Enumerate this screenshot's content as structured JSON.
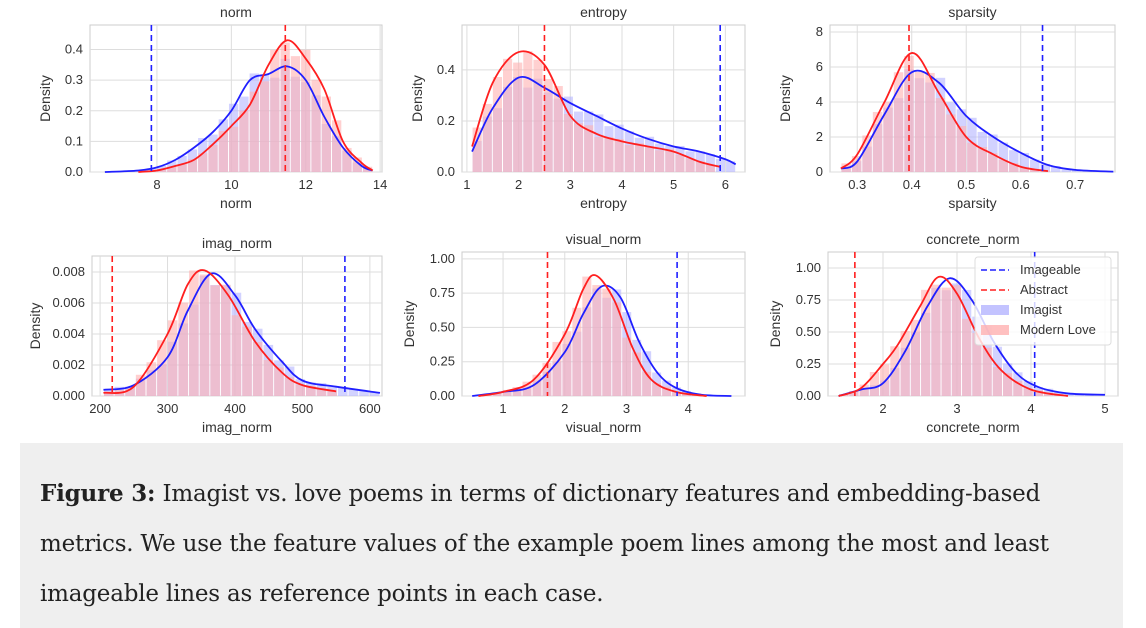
{
  "caption": {
    "label": "Figure 3:",
    "text": "Imagist vs. love poems in terms of dictionary features and embedding-based metrics. We use the feature values of the example poem lines among the most and least imageable lines as reference points in each case."
  },
  "colors": {
    "imagist": "#1f1fff",
    "love": "#ff1f1f",
    "imagist_fill": "#b4b4ff",
    "love_fill": "#ffb0b0",
    "grid": "#dddddd"
  },
  "chart_data": [
    {
      "type": "area",
      "title": "norm",
      "xlabel": "norm",
      "ylabel": "Density",
      "xlim": [
        6.2,
        14.05
      ],
      "ylim": [
        0,
        0.48
      ],
      "xticks": [
        8,
        10,
        12,
        14
      ],
      "xtick_labels": [
        "8",
        "10",
        "12",
        "14"
      ],
      "yticks": [
        0,
        0.1,
        0.2,
        0.3,
        0.4
      ],
      "ytick_labels": [
        "0.0",
        "0.1",
        "0.2",
        "0.3",
        "0.4"
      ],
      "vlines": {
        "imageable": 7.85,
        "abstract": 11.45
      },
      "series": [
        {
          "name": "Imagist",
          "kde": [
            [
              6.6,
              0
            ],
            [
              7.5,
              0.005
            ],
            [
              8,
              0.015
            ],
            [
              8.5,
              0.04
            ],
            [
              9,
              0.08
            ],
            [
              9.5,
              0.13
            ],
            [
              10,
              0.2
            ],
            [
              10.5,
              0.3
            ],
            [
              11,
              0.32
            ],
            [
              11.5,
              0.345
            ],
            [
              12,
              0.3
            ],
            [
              12.5,
              0.18
            ],
            [
              13,
              0.08
            ],
            [
              13.5,
              0.02
            ],
            [
              13.8,
              0.005
            ]
          ]
        },
        {
          "name": "Modern Love",
          "kde": [
            [
              7.5,
              0
            ],
            [
              8,
              0.005
            ],
            [
              8.5,
              0.02
            ],
            [
              9,
              0.04
            ],
            [
              9.5,
              0.09
            ],
            [
              10,
              0.15
            ],
            [
              10.5,
              0.22
            ],
            [
              11,
              0.35
            ],
            [
              11.5,
              0.43
            ],
            [
              12,
              0.37
            ],
            [
              12.5,
              0.27
            ],
            [
              13,
              0.1
            ],
            [
              13.5,
              0.03
            ],
            [
              13.8,
              0.005
            ]
          ]
        }
      ]
    },
    {
      "type": "area",
      "title": "entropy",
      "xlabel": "entropy",
      "ylabel": "Density",
      "xlim": [
        0.905,
        6.38
      ],
      "ylim": [
        0,
        0.576
      ],
      "xticks": [
        1,
        2,
        3,
        4,
        5,
        6
      ],
      "xtick_labels": [
        "1",
        "2",
        "3",
        "4",
        "5",
        "6"
      ],
      "yticks": [
        0,
        0.2,
        0.4
      ],
      "ytick_labels": [
        "0.0",
        "0.2",
        "0.4"
      ],
      "vlines": {
        "imageable": 5.9,
        "abstract": 2.5
      },
      "series": [
        {
          "name": "Imagist",
          "kde": [
            [
              1.1,
              0.08
            ],
            [
              1.5,
              0.25
            ],
            [
              2,
              0.37
            ],
            [
              2.5,
              0.33
            ],
            [
              3,
              0.27
            ],
            [
              3.5,
              0.22
            ],
            [
              4,
              0.17
            ],
            [
              4.5,
              0.13
            ],
            [
              5,
              0.1
            ],
            [
              5.5,
              0.08
            ],
            [
              6,
              0.05
            ],
            [
              6.2,
              0.03
            ]
          ]
        },
        {
          "name": "Modern Love",
          "kde": [
            [
              1.1,
              0.1
            ],
            [
              1.5,
              0.35
            ],
            [
              2,
              0.47
            ],
            [
              2.5,
              0.42
            ],
            [
              3,
              0.22
            ],
            [
              3.5,
              0.15
            ],
            [
              4,
              0.12
            ],
            [
              4.5,
              0.1
            ],
            [
              5,
              0.08
            ],
            [
              5.5,
              0.04
            ],
            [
              5.9,
              0.02
            ]
          ]
        }
      ]
    },
    {
      "type": "area",
      "title": "sparsity",
      "xlabel": "sparsity",
      "ylabel": "Density",
      "xlim": [
        0.25,
        0.773
      ],
      "ylim": [
        0,
        8.4
      ],
      "xticks": [
        0.3,
        0.4,
        0.5,
        0.6,
        0.7
      ],
      "xtick_labels": [
        "0.3",
        "0.4",
        "0.5",
        "0.6",
        "0.7"
      ],
      "yticks": [
        0,
        2,
        4,
        6,
        8
      ],
      "ytick_labels": [
        "0",
        "2",
        "4",
        "6",
        "8"
      ],
      "vlines": {
        "imageable": 0.64,
        "abstract": 0.395
      },
      "series": [
        {
          "name": "Imagist",
          "kde": [
            [
              0.27,
              0.2
            ],
            [
              0.3,
              0.6
            ],
            [
              0.35,
              3.3
            ],
            [
              0.4,
              5.7
            ],
            [
              0.45,
              5.1
            ],
            [
              0.5,
              3.2
            ],
            [
              0.55,
              2.0
            ],
            [
              0.6,
              1.1
            ],
            [
              0.65,
              0.4
            ],
            [
              0.7,
              0.12
            ],
            [
              0.77,
              0.02
            ]
          ]
        },
        {
          "name": "Modern Love",
          "kde": [
            [
              0.27,
              0.2
            ],
            [
              0.3,
              1.0
            ],
            [
              0.35,
              4.0
            ],
            [
              0.4,
              6.8
            ],
            [
              0.45,
              4.5
            ],
            [
              0.5,
              2.0
            ],
            [
              0.55,
              1.0
            ],
            [
              0.6,
              0.3
            ],
            [
              0.65,
              0.05
            ]
          ]
        }
      ]
    },
    {
      "type": "area",
      "title": "imag_norm",
      "xlabel": "imag_norm",
      "ylabel": "Density",
      "xlim": [
        188,
        618
      ],
      "ylim": [
        0,
        0.00903
      ],
      "xticks": [
        200,
        300,
        400,
        500,
        600
      ],
      "xtick_labels": [
        "200",
        "300",
        "400",
        "500",
        "600"
      ],
      "yticks": [
        0,
        0.002,
        0.004,
        0.006,
        0.008
      ],
      "ytick_labels": [
        "0.000",
        "0.002",
        "0.004",
        "0.006",
        "0.008"
      ],
      "vlines": {
        "imageable": 563,
        "abstract": 218
      },
      "series": [
        {
          "name": "Imagist",
          "kde": [
            [
              205,
              0.0004
            ],
            [
              250,
              0.0007
            ],
            [
              300,
              0.0025
            ],
            [
              330,
              0.0055
            ],
            [
              365,
              0.0079
            ],
            [
              400,
              0.0065
            ],
            [
              430,
              0.0043
            ],
            [
              470,
              0.0022
            ],
            [
              500,
              0.001
            ],
            [
              550,
              0.0006
            ],
            [
              615,
              0.0002
            ]
          ]
        },
        {
          "name": "Modern Love",
          "kde": [
            [
              205,
              0.0002
            ],
            [
              250,
              0.0006
            ],
            [
              300,
              0.004
            ],
            [
              330,
              0.0072
            ],
            [
              355,
              0.0081
            ],
            [
              390,
              0.0065
            ],
            [
              430,
              0.0035
            ],
            [
              470,
              0.0015
            ],
            [
              500,
              0.0007
            ],
            [
              550,
              0.0003
            ]
          ]
        }
      ]
    },
    {
      "type": "area",
      "title": "visual_norm",
      "xlabel": "visual_norm",
      "ylabel": "Density",
      "xlim": [
        0.335,
        4.92
      ],
      "ylim": [
        0,
        1.05
      ],
      "xticks": [
        1,
        2,
        3,
        4
      ],
      "xtick_labels": [
        "1",
        "2",
        "3",
        "4"
      ],
      "yticks": [
        0,
        0.25,
        0.5,
        0.75,
        1.0
      ],
      "ytick_labels": [
        "0.00",
        "0.25",
        "0.50",
        "0.75",
        "1.00"
      ],
      "vlines": {
        "imageable": 3.82,
        "abstract": 1.72
      },
      "series": [
        {
          "name": "Imagist",
          "kde": [
            [
              0.5,
              0
            ],
            [
              1,
              0.03
            ],
            [
              1.5,
              0.08
            ],
            [
              2,
              0.32
            ],
            [
              2.3,
              0.6
            ],
            [
              2.6,
              0.8
            ],
            [
              2.9,
              0.72
            ],
            [
              3.2,
              0.4
            ],
            [
              3.5,
              0.17
            ],
            [
              3.8,
              0.06
            ],
            [
              4.2,
              0.01
            ],
            [
              4.7,
              0
            ]
          ]
        },
        {
          "name": "Modern Love",
          "kde": [
            [
              0.6,
              0
            ],
            [
              1,
              0.03
            ],
            [
              1.5,
              0.12
            ],
            [
              2,
              0.45
            ],
            [
              2.3,
              0.78
            ],
            [
              2.5,
              0.88
            ],
            [
              2.8,
              0.7
            ],
            [
              3.1,
              0.35
            ],
            [
              3.4,
              0.12
            ],
            [
              3.8,
              0.03
            ],
            [
              4.3,
              0
            ]
          ]
        }
      ]
    },
    {
      "type": "area",
      "title": "concrete_norm",
      "xlabel": "concrete_norm",
      "ylabel": "Density",
      "xlim": [
        1.257,
        5.176
      ],
      "ylim": [
        0,
        1.125
      ],
      "xticks": [
        2,
        3,
        4,
        5
      ],
      "xtick_labels": [
        "2",
        "3",
        "4",
        "5"
      ],
      "yticks": [
        0,
        0.25,
        0.5,
        0.75,
        1.0
      ],
      "ytick_labels": [
        "0.00",
        "0.25",
        "0.50",
        "0.75",
        "1.00"
      ],
      "vlines": {
        "imageable": 4.05,
        "abstract": 1.62
      },
      "legend": {
        "placement": "top-right",
        "entries": [
          "Imageable",
          "Abstract",
          "Imagist",
          "Modern Love"
        ]
      },
      "series": [
        {
          "name": "Imagist",
          "kde": [
            [
              1.4,
              0
            ],
            [
              1.7,
              0.05
            ],
            [
              2,
              0.1
            ],
            [
              2.3,
              0.35
            ],
            [
              2.6,
              0.7
            ],
            [
              2.9,
              0.92
            ],
            [
              3.2,
              0.75
            ],
            [
              3.5,
              0.42
            ],
            [
              3.8,
              0.18
            ],
            [
              4.1,
              0.07
            ],
            [
              4.5,
              0.02
            ],
            [
              5,
              0.01
            ]
          ]
        },
        {
          "name": "Modern Love",
          "kde": [
            [
              1.4,
              0
            ],
            [
              1.7,
              0.06
            ],
            [
              2,
              0.25
            ],
            [
              2.2,
              0.4
            ],
            [
              2.5,
              0.7
            ],
            [
              2.75,
              0.93
            ],
            [
              3,
              0.8
            ],
            [
              3.3,
              0.45
            ],
            [
              3.6,
              0.2
            ],
            [
              4,
              0.05
            ],
            [
              4.5,
              0
            ]
          ]
        }
      ]
    }
  ]
}
